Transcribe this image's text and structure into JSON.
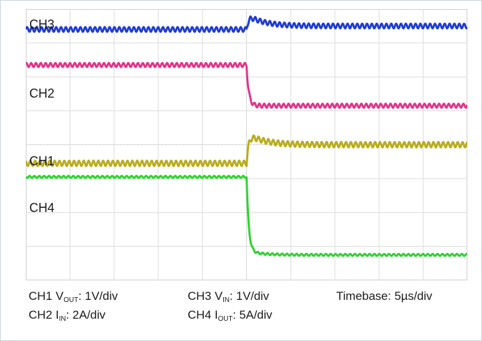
{
  "chart_data": {
    "type": "line",
    "title": "",
    "grid": true,
    "grid_divisions": {
      "x": 10,
      "y": 8
    },
    "xlim": [
      0,
      50
    ],
    "xunit": "µs",
    "ylim": [
      0,
      8
    ],
    "step_time_us": 25,
    "series": [
      {
        "name": "CH3",
        "color": "#1e3cd6",
        "before_div": 7.4,
        "after_div": 7.5,
        "peak_div": 7.85,
        "ripple_div": 0.07
      },
      {
        "name": "CH2",
        "color": "#e0358a",
        "before_div": 6.35,
        "after_div": 5.15,
        "peak_div": 5.15,
        "ripple_div": 0.06
      },
      {
        "name": "CH1",
        "color": "#b9ad1e",
        "before_div": 3.45,
        "after_div": 4.0,
        "peak_div": 4.35,
        "ripple_div": 0.08
      },
      {
        "name": "CH4",
        "color": "#2ad62a",
        "before_div": 3.05,
        "after_div": 0.75,
        "peak_div": 0.85,
        "ripple_div": 0.03
      }
    ]
  },
  "channel_labels": {
    "ch3": "CH3",
    "ch2": "CH2",
    "ch1": "CH1",
    "ch4": "CH4"
  },
  "legend": {
    "ch1": {
      "prefix": "CH1 V",
      "sub": "OUT",
      "suffix": ": 1V/div"
    },
    "ch2": {
      "prefix": "CH2 I",
      "sub": "IN",
      "suffix": ": 2A/div"
    },
    "ch3": {
      "prefix": "CH3 V",
      "sub": "IN",
      "suffix": ": 1V/div"
    },
    "ch4": {
      "prefix": "CH4 I",
      "sub": "OUT",
      "suffix": ": 5A/div"
    },
    "timebase": "Timebase: 5µs/div"
  }
}
